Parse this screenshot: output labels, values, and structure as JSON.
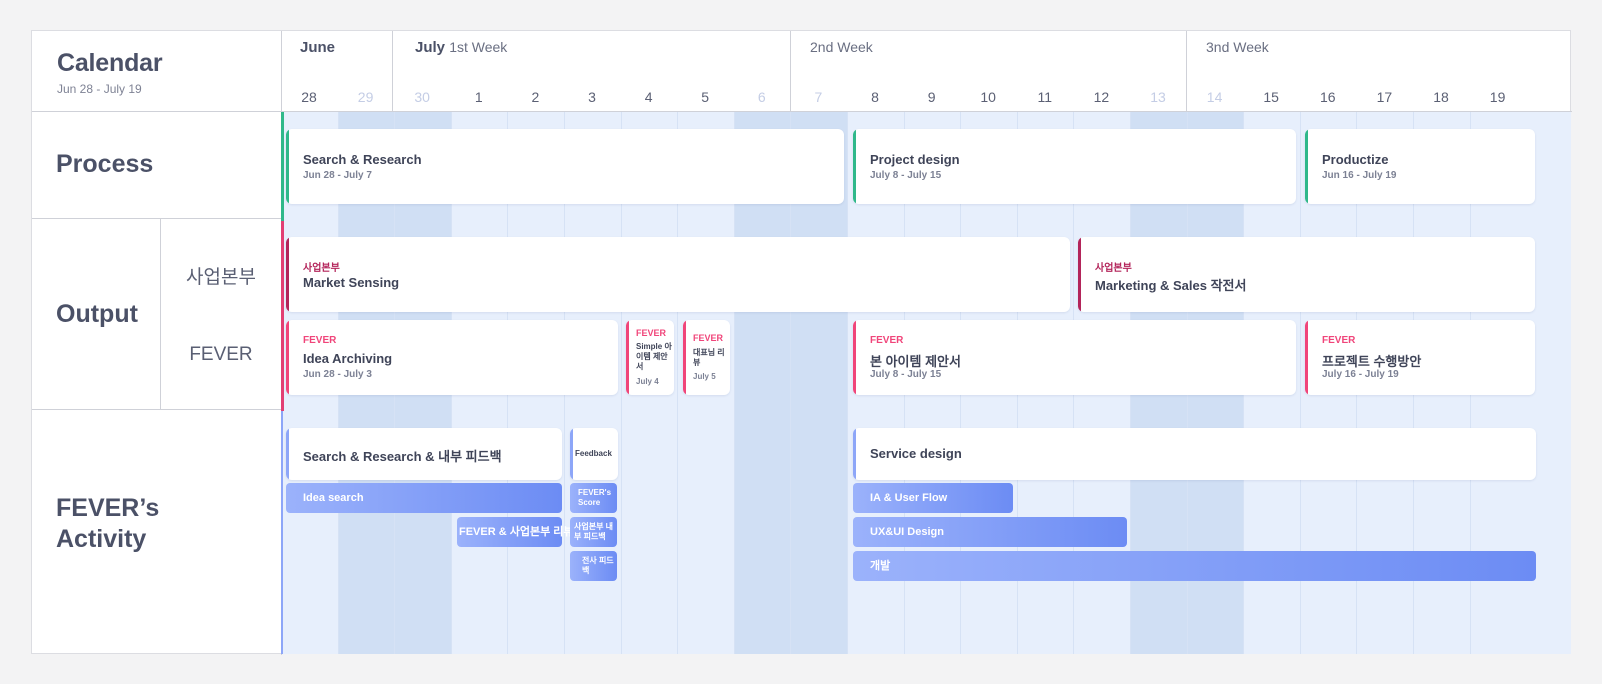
{
  "calendar": {
    "title": "Calendar",
    "range": "Jun 28 - July 19"
  },
  "months": {
    "june": "June",
    "july_month": "July",
    "july_week": "1st Week",
    "week2": "2nd Week",
    "week3": "3nd Week"
  },
  "days": [
    {
      "label": "28",
      "weekend": false
    },
    {
      "label": "29",
      "weekend": true
    },
    {
      "label": "30",
      "weekend": true
    },
    {
      "label": "1",
      "weekend": false
    },
    {
      "label": "2",
      "weekend": false
    },
    {
      "label": "3",
      "weekend": false
    },
    {
      "label": "4",
      "weekend": false
    },
    {
      "label": "5",
      "weekend": false
    },
    {
      "label": "6",
      "weekend": true
    },
    {
      "label": "7",
      "weekend": true
    },
    {
      "label": "8",
      "weekend": false
    },
    {
      "label": "9",
      "weekend": false
    },
    {
      "label": "10",
      "weekend": false
    },
    {
      "label": "11",
      "weekend": false
    },
    {
      "label": "12",
      "weekend": false
    },
    {
      "label": "13",
      "weekend": true
    },
    {
      "label": "14",
      "weekend": true
    },
    {
      "label": "15",
      "weekend": false
    },
    {
      "label": "16",
      "weekend": false
    },
    {
      "label": "17",
      "weekend": false
    },
    {
      "label": "18",
      "weekend": false
    },
    {
      "label": "19",
      "weekend": false
    }
  ],
  "sections": {
    "process": "Process",
    "output": "Output",
    "output_rows": {
      "biz": "사업본부",
      "fever": "FEVER"
    },
    "activity_line1": "FEVER’s",
    "activity_line2": "Activity"
  },
  "colors": {
    "process_accent": "#2fb88a",
    "biz_accent": "#b3245a",
    "fever_accent": "#f0457a",
    "activity_accent": "#8da6f8",
    "bar_from": "#9bb2fb",
    "bar_to": "#6c8cf4"
  },
  "process": [
    {
      "title": "Search & Research",
      "sub": "Jun 28 - July 7"
    },
    {
      "title": "Project design",
      "sub": "July 8 - July 15"
    },
    {
      "title": "Productize",
      "sub": "Jun 16 - July 19"
    }
  ],
  "output": {
    "biz": [
      {
        "tag": "사업본부",
        "title": "Market Sensing"
      },
      {
        "tag": "사업본부",
        "title": "Marketing & Sales 작전서"
      }
    ],
    "fever": [
      {
        "tag": "FEVER",
        "title": "Idea Archiving",
        "sub": "Jun 28 - July 3"
      },
      {
        "tag": "FEVER",
        "title": "Simple 아이템 제안서",
        "sub": "July 4"
      },
      {
        "tag": "FEVER",
        "title": "대표님 리뷰",
        "sub": "July 5"
      },
      {
        "tag": "FEVER",
        "title": "본 아이템 제안서",
        "sub": "July 8 - July 15"
      },
      {
        "tag": "FEVER",
        "title": "프로젝트 수행방안",
        "sub": "July 16 - July 19"
      }
    ]
  },
  "activity": {
    "cards": [
      {
        "title": "Search & Research & 내부 피드백"
      },
      {
        "title": "Feedback"
      },
      {
        "title": "Service design"
      }
    ],
    "bars": [
      {
        "label": "Idea search"
      },
      {
        "label": "FEVER & 사업본부 리뷰"
      },
      {
        "label": "FEVER's Score"
      },
      {
        "label": "사업본부 내부 피드백"
      },
      {
        "label": "전사 피드백"
      },
      {
        "label": "IA & User Flow"
      },
      {
        "label": "UX&UI Design"
      },
      {
        "label": "개발"
      }
    ]
  }
}
